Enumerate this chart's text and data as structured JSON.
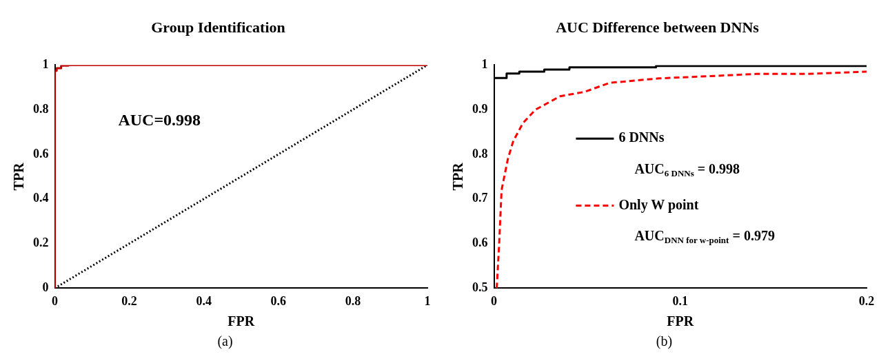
{
  "chart_data": [
    {
      "type": "line",
      "title": "Group Identification",
      "xlabel": "FPR",
      "ylabel": "TPR",
      "xlim": [
        0,
        1
      ],
      "ylim": [
        0,
        1
      ],
      "xticks": [
        0,
        0.2,
        0.4,
        0.6,
        0.8,
        1
      ],
      "yticks": [
        0,
        0.2,
        0.4,
        0.6,
        0.8,
        1
      ],
      "grid": false,
      "legend": false,
      "marker": "none",
      "series": [
        {
          "type": "step",
          "color": "#c00000",
          "line_style": "solid",
          "x": [
            0,
            0,
            0.005,
            0.017,
            0.036,
            0.086,
            1
          ],
          "values": [
            0,
            0.96,
            0.974,
            0.986,
            0.997,
            1,
            1
          ]
        },
        {
          "color": "#000000",
          "line_style": "dotted",
          "x": [
            0,
            1
          ],
          "values": [
            0,
            1
          ]
        }
      ],
      "annotations": [
        "AUC=0.998",
        "(a)"
      ]
    },
    {
      "type": "line",
      "title": "AUC Difference between DNNs",
      "xlabel": "FPR",
      "ylabel": "TPR",
      "xlim": [
        0,
        0.2
      ],
      "ylim": [
        0.5,
        1
      ],
      "xticks": [
        0,
        0.1,
        0.2
      ],
      "yticks": [
        0.5,
        0.6,
        0.7,
        0.8,
        0.9,
        1
      ],
      "grid": false,
      "legend": "left",
      "marker": "none",
      "series": [
        {
          "type": "step",
          "name": "6 DNNs",
          "color": "#000000",
          "line_style": "solid",
          "x": [
            0,
            0,
            0.0068,
            0.0136,
            0.027,
            0.0405,
            0.087,
            0.127,
            0.2
          ],
          "values": [
            0.5,
            0.96,
            0.971,
            0.981,
            0.985,
            0.99,
            0.995,
            0.998,
            0.998
          ]
        },
        {
          "name": "Only W point",
          "color": "#ff0000",
          "line_style": "dashed",
          "x": [
            0.0015,
            0.0028,
            0.0041,
            0.0075,
            0.0104,
            0.0156,
            0.0223,
            0.0355,
            0.0488,
            0.062,
            0.0884,
            0.115,
            0.141,
            0.168,
            0.2
          ],
          "values": [
            0.5,
            0.6,
            0.72,
            0.79,
            0.83,
            0.87,
            0.9,
            0.93,
            0.94,
            0.96,
            0.97,
            0.975,
            0.98,
            0.98,
            0.985
          ]
        }
      ],
      "annotations": [
        "AUC$_{6 DNNs}$ = 0.998",
        "AUC$_{DNN for w-point}$ = 0.979",
        "(b)"
      ]
    }
  ]
}
